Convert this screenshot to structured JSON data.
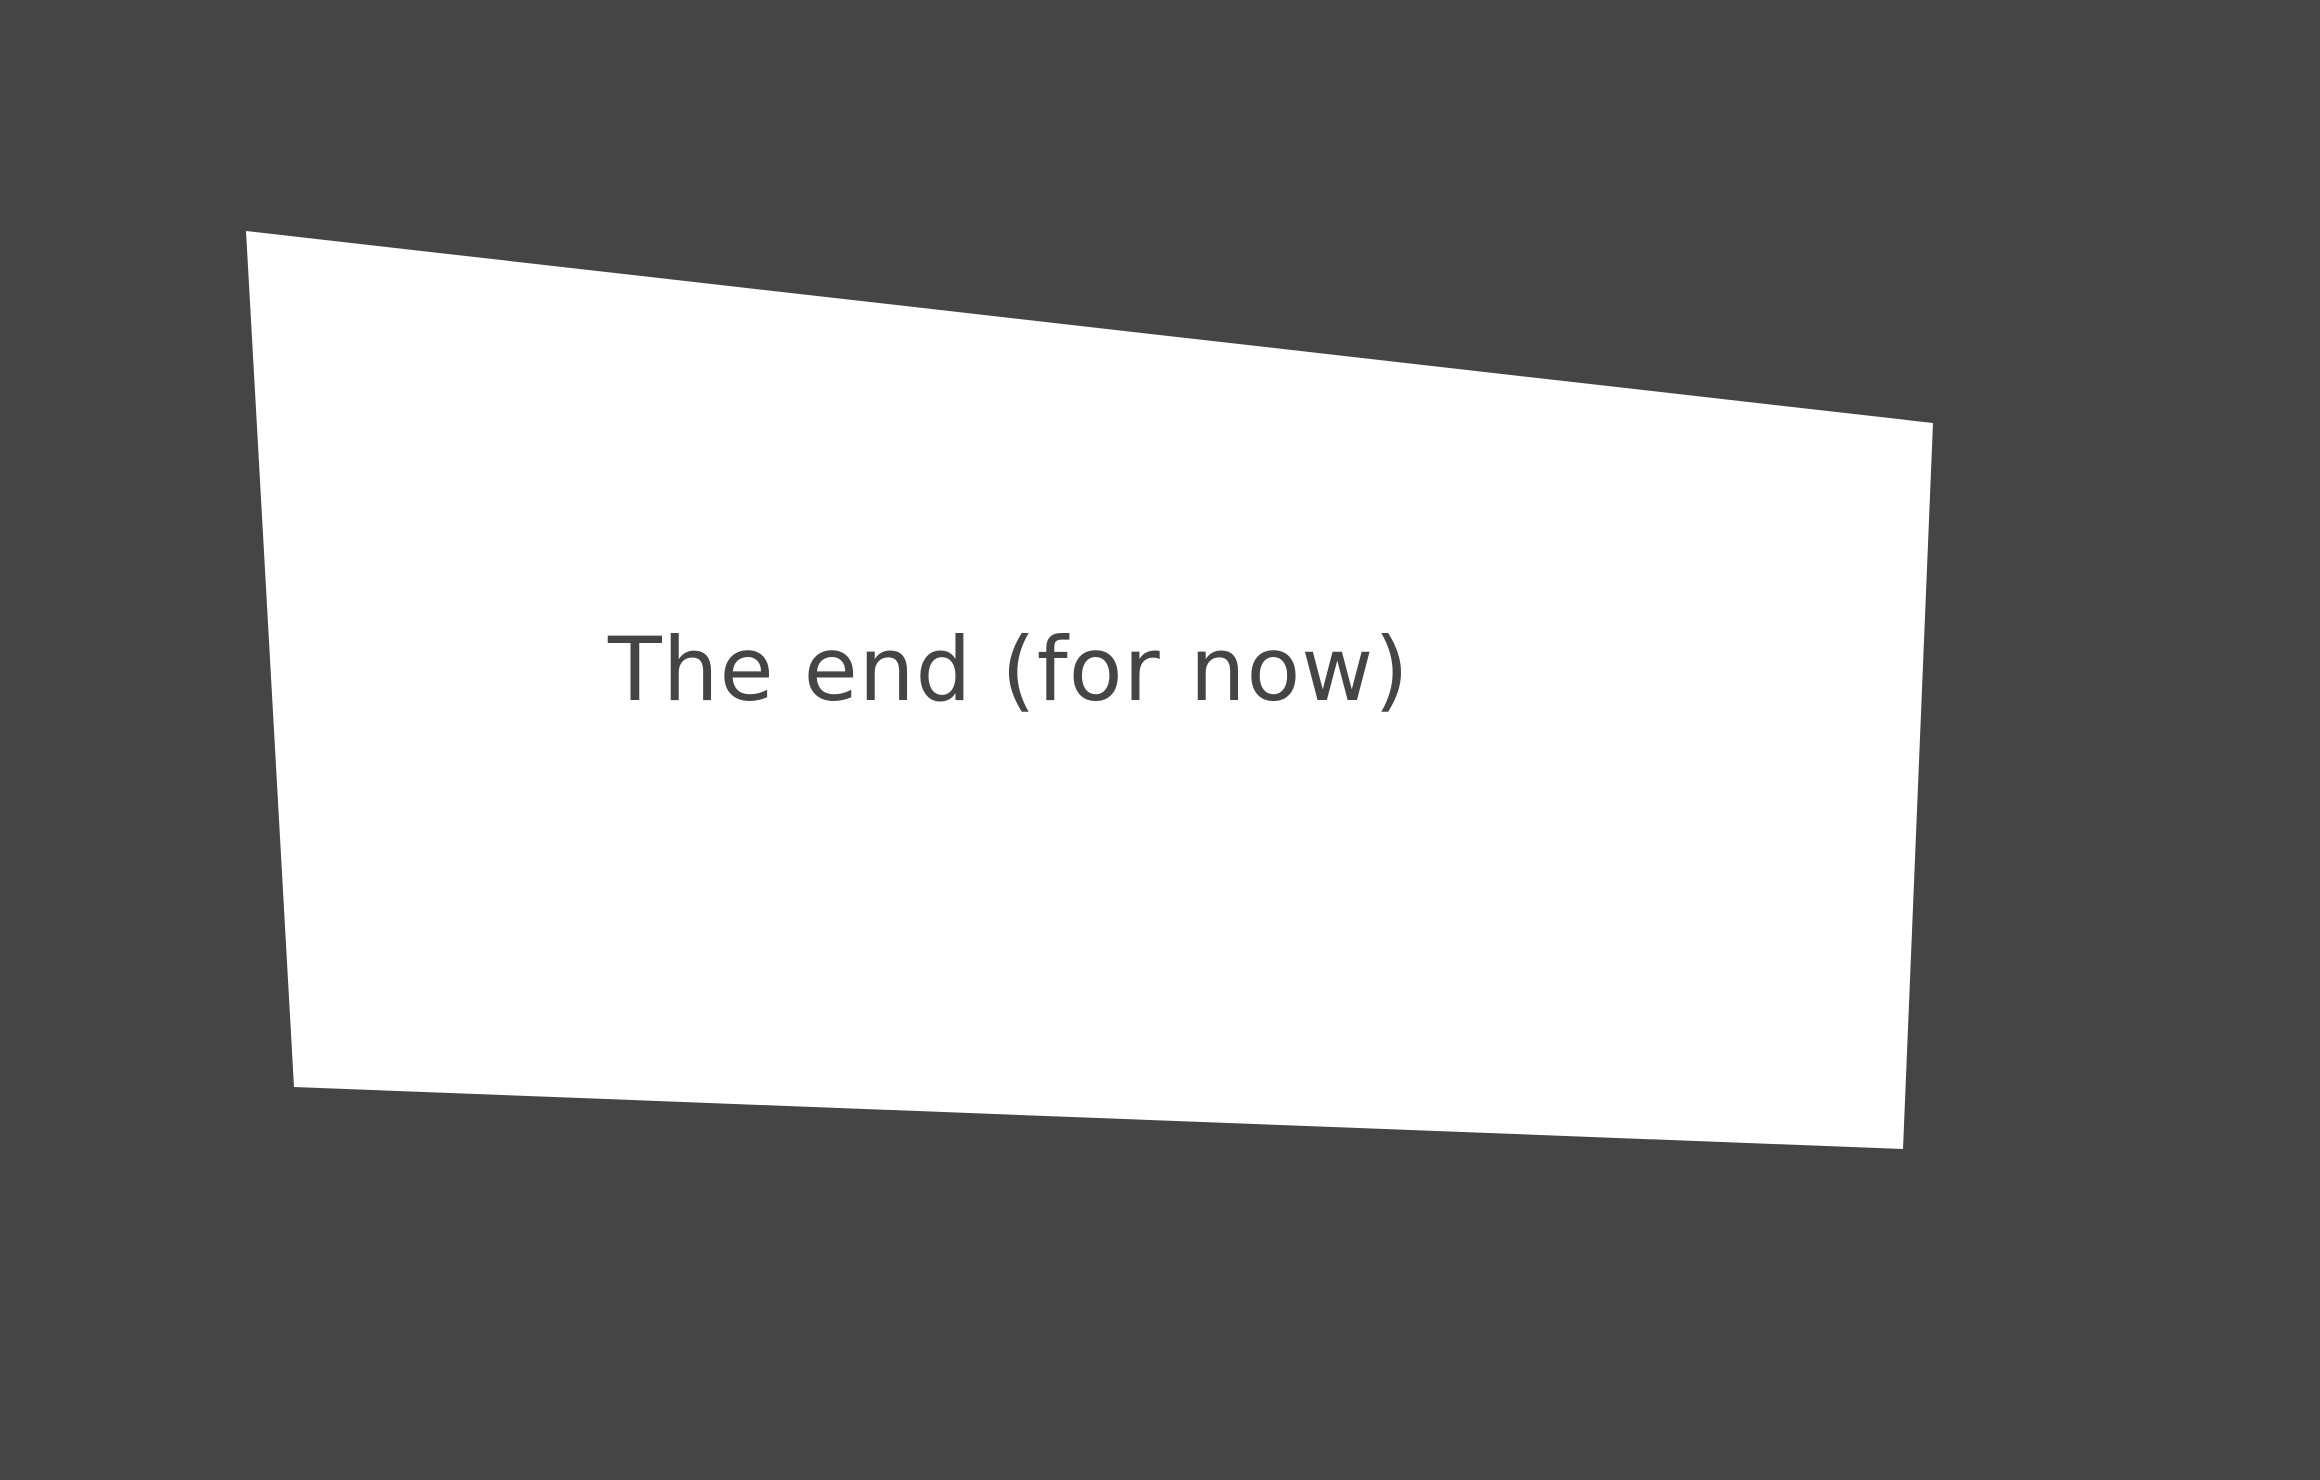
{
  "colors": {
    "background": "#454545",
    "panel": "#ffffff",
    "text": "#454545"
  },
  "slide": {
    "caption": "The end (for now)"
  }
}
